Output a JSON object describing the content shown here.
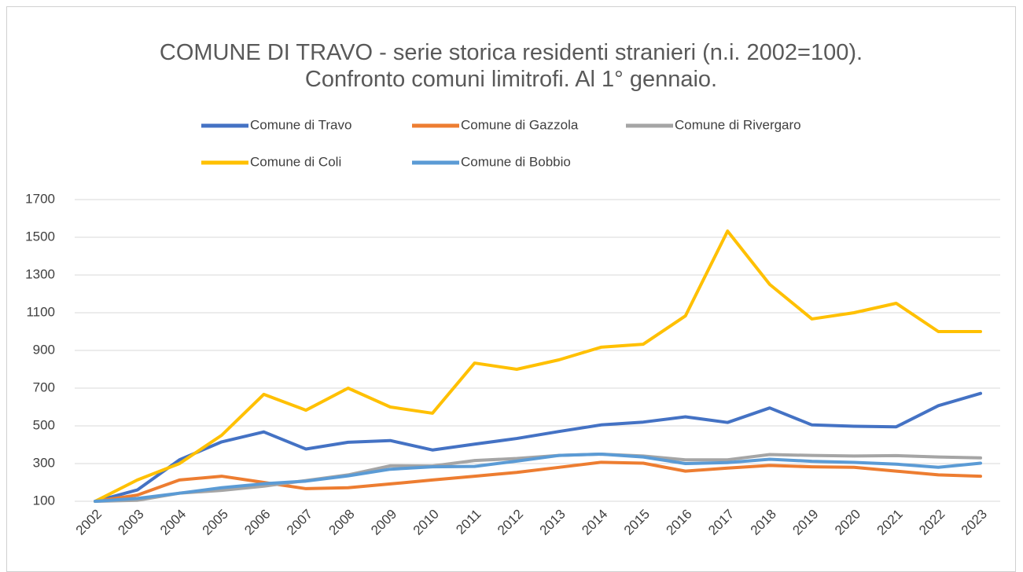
{
  "chart_data": {
    "type": "line",
    "title": "COMUNE DI TRAVO - serie storica residenti stranieri (n.i. 2002=100). Confronto comuni limitrofi. Al 1° gennaio.",
    "categories": [
      "2002",
      "2003",
      "2004",
      "2005",
      "2006",
      "2007",
      "2008",
      "2009",
      "2010",
      "2011",
      "2012",
      "2013",
      "2014",
      "2015",
      "2016",
      "2017",
      "2018",
      "2019",
      "2020",
      "2021",
      "2022",
      "2023"
    ],
    "series": [
      {
        "name": "Comune di Travo",
        "color": "#4472c4",
        "values": [
          100,
          160,
          320,
          415,
          468,
          377,
          413,
          422,
          372,
          403,
          433,
          470,
          505,
          520,
          548,
          518,
          595,
          505,
          498,
          495,
          607,
          672
        ]
      },
      {
        "name": "Comune di Gazzola",
        "color": "#ed7d31",
        "values": [
          100,
          133,
          213,
          233,
          200,
          167,
          172,
          192,
          213,
          233,
          253,
          280,
          307,
          302,
          260,
          276,
          290,
          283,
          280,
          260,
          240,
          233
        ]
      },
      {
        "name": "Comune di Rivergaro",
        "color": "#a5a5a5",
        "values": [
          100,
          105,
          143,
          158,
          180,
          210,
          240,
          288,
          287,
          316,
          327,
          343,
          350,
          340,
          320,
          320,
          348,
          343,
          340,
          342,
          335,
          330
        ]
      },
      {
        "name": "Comune di Coli",
        "color": "#ffc000",
        "values": [
          100,
          213,
          300,
          450,
          667,
          583,
          700,
          600,
          567,
          833,
          800,
          850,
          917,
          933,
          1083,
          1533,
          1250,
          1067,
          1100,
          1150,
          1000,
          1000
        ]
      },
      {
        "name": "Comune di Bobbio",
        "color": "#5b9bd5",
        "values": [
          100,
          115,
          143,
          172,
          193,
          207,
          235,
          270,
          283,
          285,
          313,
          343,
          350,
          335,
          300,
          305,
          323,
          312,
          306,
          297,
          280,
          302
        ]
      }
    ],
    "ylim": [
      100,
      1700
    ],
    "yticks": [
      100,
      300,
      500,
      700,
      900,
      1100,
      1300,
      1500,
      1700
    ],
    "grid": true,
    "legend": "top"
  }
}
